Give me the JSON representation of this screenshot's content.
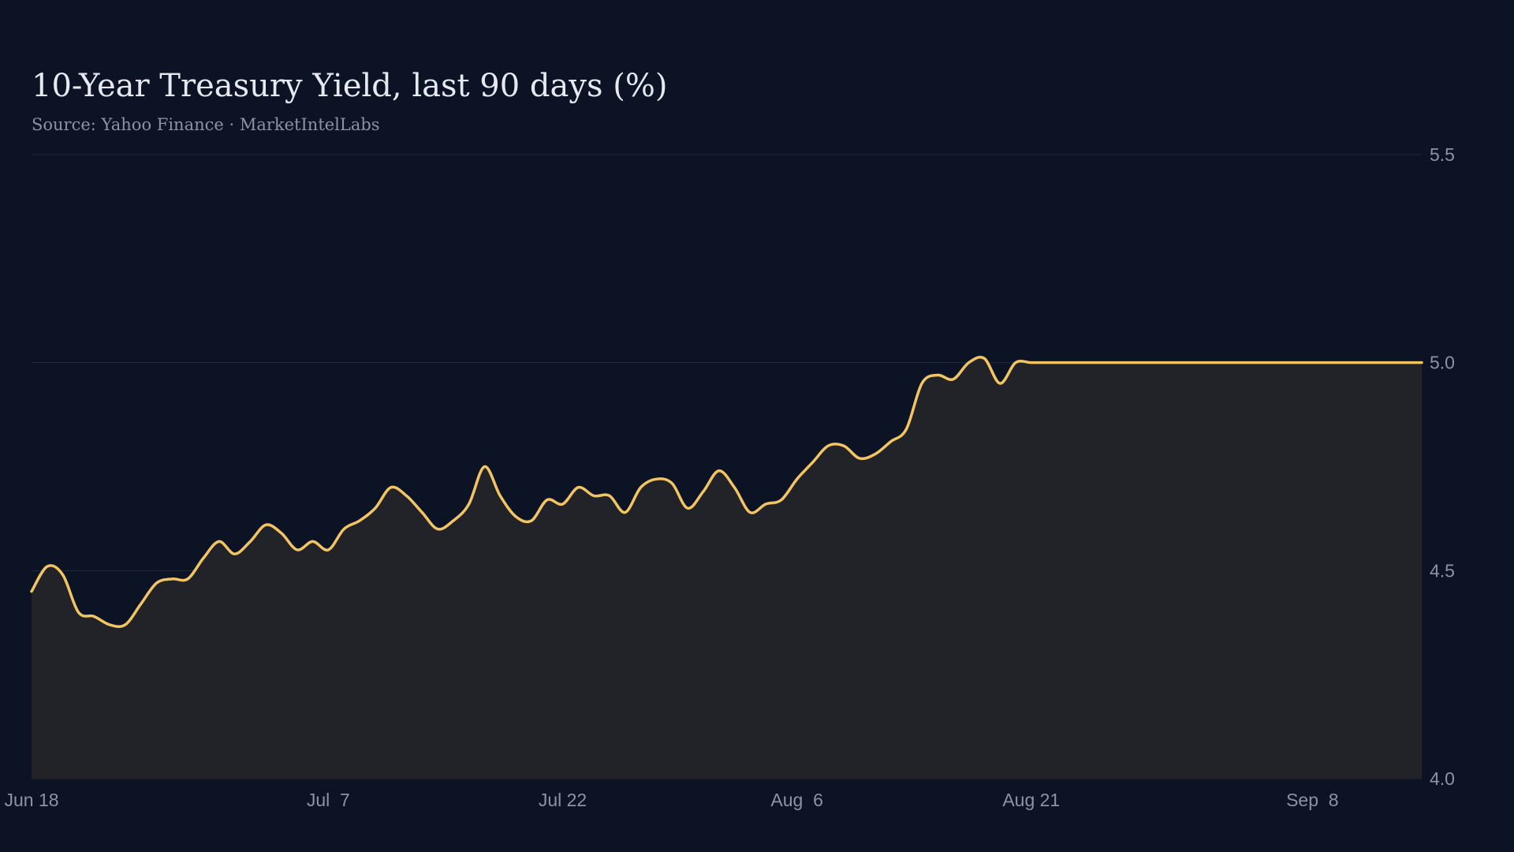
{
  "chart_data": {
    "type": "area",
    "title": "10-Year Treasury Yield, last 90 days (%)",
    "subtitle": "Source: Yahoo Finance · MarketIntelLabs",
    "xlabel": "",
    "ylabel": "",
    "ylim": [
      4.0,
      5.5
    ],
    "yticks": [
      4.0,
      4.5,
      5.0,
      5.5
    ],
    "ytick_labels": [
      "4.0",
      "4.5",
      "5.0",
      "5.5"
    ],
    "xlim": [
      "2025-06-18",
      "2025-09-15"
    ],
    "xticks": [
      {
        "date": "2025-06-18",
        "label": "Jun 18"
      },
      {
        "date": "2025-07-07",
        "label": "Jul  7"
      },
      {
        "date": "2025-07-22",
        "label": "Jul 22"
      },
      {
        "date": "2025-08-06",
        "label": "Aug  6"
      },
      {
        "date": "2025-08-21",
        "label": "Aug 21"
      },
      {
        "date": "2025-09-08",
        "label": "Sep  8"
      }
    ],
    "grid": true,
    "legend": "none",
    "colors": {
      "background": "#0c1324",
      "line": "#f2c462",
      "fill": "#212328",
      "grid": "#232a38",
      "text": "#8c93a3",
      "title": "#e6e9f0"
    },
    "series": [
      {
        "x": [
          "2025-06-18",
          "2025-06-19",
          "2025-06-20",
          "2025-06-21",
          "2025-06-22",
          "2025-06-23",
          "2025-06-24",
          "2025-06-25",
          "2025-06-26",
          "2025-06-27",
          "2025-06-28",
          "2025-06-29",
          "2025-06-30",
          "2025-07-01",
          "2025-07-02",
          "2025-07-03",
          "2025-07-04",
          "2025-07-05",
          "2025-07-06",
          "2025-07-07",
          "2025-07-08",
          "2025-07-09",
          "2025-07-10",
          "2025-07-11",
          "2025-07-12",
          "2025-07-13",
          "2025-07-14",
          "2025-07-15",
          "2025-07-16",
          "2025-07-17",
          "2025-07-18",
          "2025-07-19",
          "2025-07-20",
          "2025-07-21",
          "2025-07-22",
          "2025-07-23",
          "2025-07-24",
          "2025-07-25",
          "2025-07-26",
          "2025-07-27",
          "2025-07-28",
          "2025-07-29",
          "2025-07-30",
          "2025-07-31",
          "2025-08-01",
          "2025-08-02",
          "2025-08-03",
          "2025-08-04",
          "2025-08-05",
          "2025-08-06",
          "2025-08-07",
          "2025-08-08",
          "2025-08-09",
          "2025-08-10",
          "2025-08-11",
          "2025-08-12",
          "2025-08-13",
          "2025-08-14",
          "2025-08-15",
          "2025-08-16",
          "2025-08-17",
          "2025-08-18",
          "2025-08-19",
          "2025-08-20",
          "2025-08-21",
          "2025-08-22",
          "2025-08-23",
          "2025-08-24",
          "2025-08-25",
          "2025-08-26",
          "2025-08-27",
          "2025-08-28",
          "2025-08-29",
          "2025-08-30",
          "2025-08-31",
          "2025-09-01",
          "2025-09-02",
          "2025-09-03",
          "2025-09-04",
          "2025-09-05",
          "2025-09-06",
          "2025-09-07",
          "2025-09-08",
          "2025-09-09",
          "2025-09-10",
          "2025-09-11",
          "2025-09-12",
          "2025-09-13",
          "2025-09-14",
          "2025-09-15"
        ],
        "values": [
          4.45,
          4.51,
          4.49,
          4.4,
          4.39,
          4.37,
          4.37,
          4.42,
          4.47,
          4.48,
          4.48,
          4.53,
          4.57,
          4.54,
          4.57,
          4.61,
          4.59,
          4.55,
          4.57,
          4.55,
          4.6,
          4.62,
          4.65,
          4.7,
          4.68,
          4.64,
          4.6,
          4.62,
          4.66,
          4.75,
          4.68,
          4.63,
          4.62,
          4.67,
          4.66,
          4.7,
          4.68,
          4.68,
          4.64,
          4.7,
          4.72,
          4.71,
          4.65,
          4.69,
          4.74,
          4.7,
          4.64,
          4.66,
          4.67,
          4.72,
          4.76,
          4.8,
          4.8,
          4.77,
          4.78,
          4.81,
          4.84,
          4.95,
          4.97,
          4.96,
          5.0,
          5.01,
          4.95,
          5.0,
          5.0,
          5.0,
          5.0,
          5.0,
          5.0,
          5.0,
          5.0,
          5.0,
          5.0,
          5.0,
          5.0,
          5.0,
          5.0,
          5.0,
          5.0,
          5.0,
          5.0,
          5.0,
          5.0,
          5.0,
          5.0,
          5.0,
          5.0,
          5.0,
          5.0,
          5.0
        ]
      }
    ]
  }
}
